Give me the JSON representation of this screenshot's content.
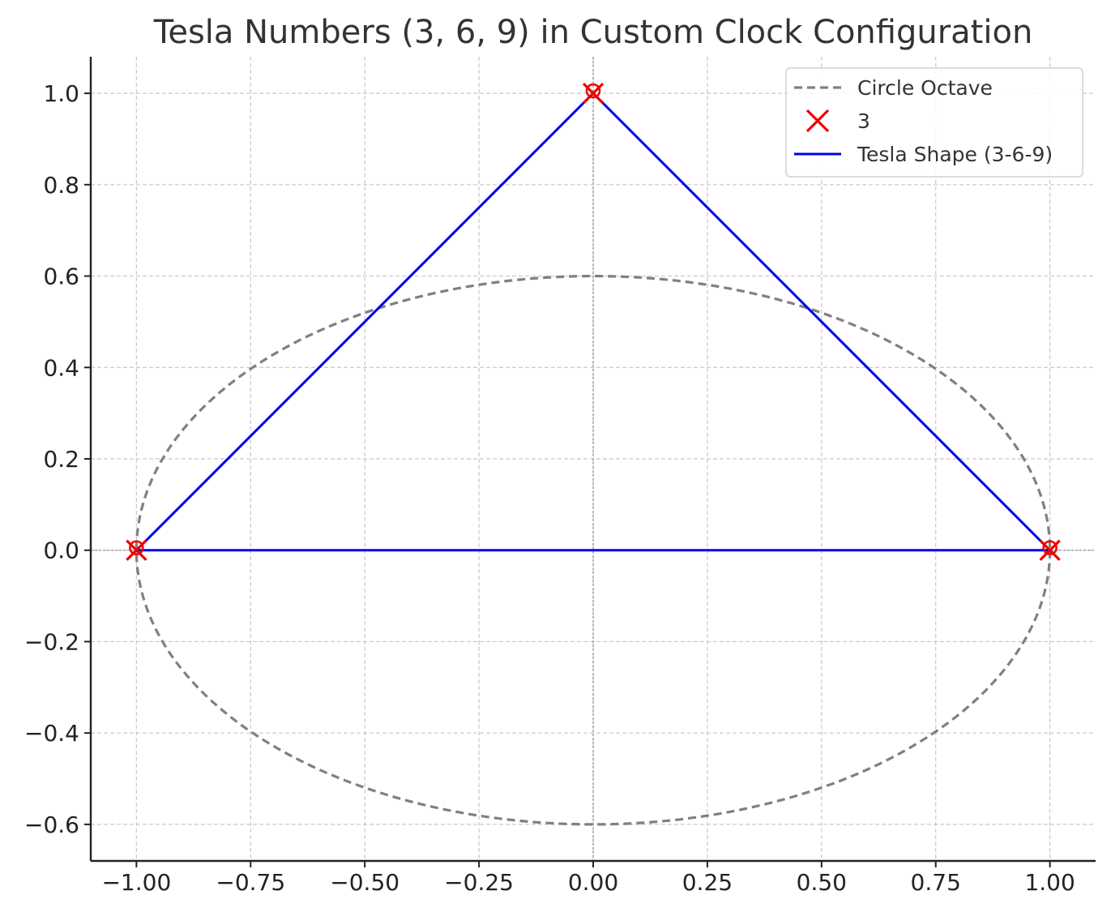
{
  "chart_data": {
    "type": "line",
    "title": "Tesla Numbers (3, 6, 9) in Custom Clock Configuration",
    "xlabel": "",
    "ylabel": "",
    "xlim": [
      -1.1,
      1.1
    ],
    "ylim": [
      -0.68,
      1.08
    ],
    "x_ticks": [
      -1.0,
      -0.75,
      -0.5,
      -0.25,
      0.0,
      0.25,
      0.5,
      0.75,
      1.0
    ],
    "x_tick_labels": [
      "−1.00",
      "−0.75",
      "−0.50",
      "−0.25",
      "0.00",
      "0.25",
      "0.50",
      "0.75",
      "1.00"
    ],
    "y_ticks": [
      -0.6,
      -0.4,
      -0.2,
      0.0,
      0.2,
      0.4,
      0.6,
      0.8,
      1.0
    ],
    "y_tick_labels": [
      "−0.6",
      "−0.4",
      "−0.2",
      "0.0",
      "0.2",
      "0.4",
      "0.6",
      "0.8",
      "1.0"
    ],
    "grid": true,
    "legend_position": "top-right",
    "series": [
      {
        "name": "Circle Octave",
        "kind": "ellipse",
        "style": "dashed",
        "color": "#808080",
        "center": [
          0,
          0
        ],
        "rx": 1.0,
        "ry": 0.6
      },
      {
        "name": "3",
        "kind": "markers",
        "marker": "x",
        "color": "#ee0000",
        "x": [
          0.0,
          1.0,
          -1.0
        ],
        "y": [
          1.0,
          0.0,
          0.0
        ]
      },
      {
        "name": "Tesla Shape (3-6-9)",
        "kind": "line",
        "color": "#0000ee",
        "x": [
          0.0,
          1.0,
          -1.0,
          0.0
        ],
        "y": [
          1.0,
          0.0,
          0.0,
          1.0
        ]
      }
    ],
    "reference_lines": [
      {
        "axis": "x",
        "value": 0,
        "color": "#999999"
      },
      {
        "axis": "y",
        "value": 0,
        "color": "#999999"
      }
    ]
  }
}
